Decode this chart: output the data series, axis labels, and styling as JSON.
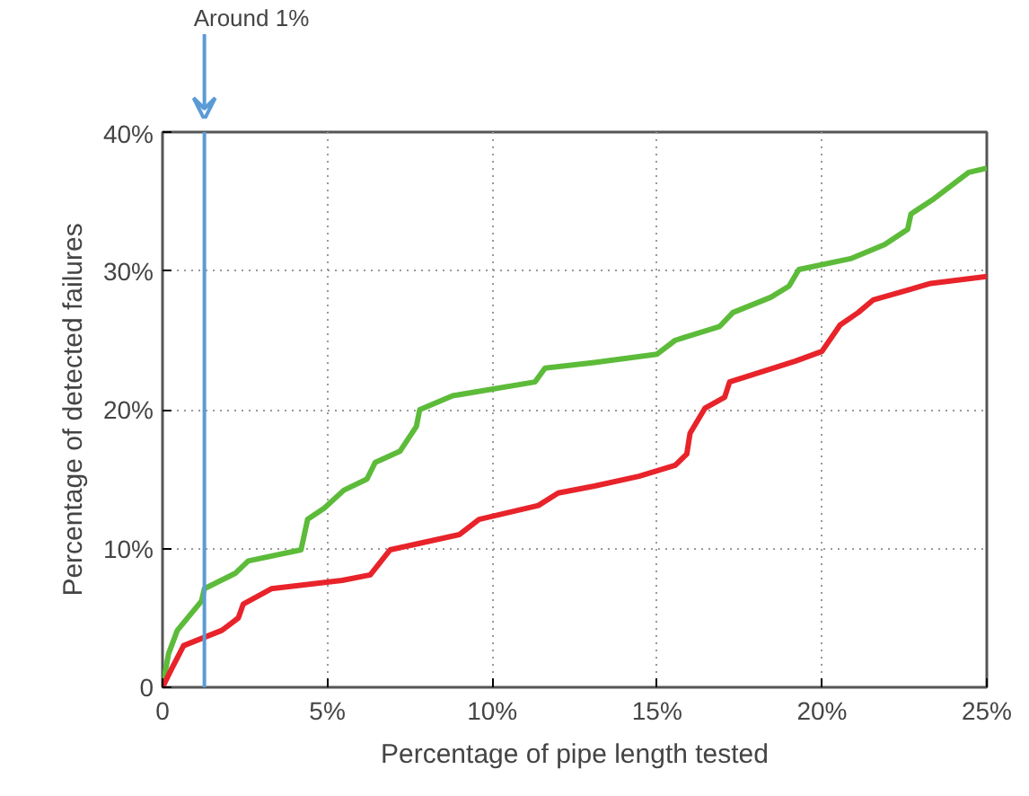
{
  "chart_data": {
    "type": "line",
    "xlabel": "Percentage of pipe length tested",
    "ylabel": "Percentage of detected failures",
    "xlim": [
      0,
      25
    ],
    "ylim": [
      0,
      40
    ],
    "xticks": [
      {
        "value": 0,
        "label": "0"
      },
      {
        "value": 5,
        "label": "5%"
      },
      {
        "value": 10,
        "label": "10%"
      },
      {
        "value": 15,
        "label": "15%"
      },
      {
        "value": 20,
        "label": "20%"
      },
      {
        "value": 25,
        "label": "25%"
      }
    ],
    "yticks": [
      {
        "value": 0,
        "label": "0"
      },
      {
        "value": 10,
        "label": "10%"
      },
      {
        "value": 20,
        "label": "20%"
      },
      {
        "value": 30,
        "label": "30%"
      },
      {
        "value": 40,
        "label": "40%"
      }
    ],
    "grid": true,
    "line_style": "solid",
    "marker": "none",
    "ref_lines": [
      {
        "axis": "x",
        "value": 1.27,
        "label": "Around 1%",
        "color": "#5b9bd5"
      }
    ],
    "series": [
      {
        "color": "#5dbb3a",
        "x": [
          0,
          0.18,
          0.45,
          1.18,
          1.27,
          2.2,
          2.6,
          4.2,
          4.4,
          4.9,
          5.5,
          6.2,
          6.45,
          7.2,
          7.7,
          7.8,
          8.8,
          11.3,
          11.6,
          13.1,
          15.0,
          15.55,
          16.9,
          17.3,
          18.45,
          19.0,
          19.3,
          20.9,
          21.9,
          22.6,
          22.7,
          23.4,
          24.45,
          25
        ],
        "values": [
          0,
          2.4,
          4.1,
          6.2,
          7.1,
          8.2,
          9.1,
          9.9,
          12.1,
          12.9,
          14.2,
          15.0,
          16.2,
          17.0,
          18.8,
          20.0,
          21.0,
          22.0,
          23.0,
          23.4,
          24.0,
          25.0,
          26.0,
          27.0,
          28.1,
          28.9,
          30.1,
          30.9,
          31.9,
          33.0,
          34.1,
          35.2,
          37.1,
          37.4
        ]
      },
      {
        "color": "#e8232a",
        "x": [
          0,
          0.27,
          0.64,
          1.27,
          1.8,
          2.3,
          2.45,
          3.3,
          5.45,
          6.3,
          6.9,
          9.0,
          9.6,
          11.4,
          12.0,
          13.1,
          14.45,
          15.55,
          15.9,
          16.0,
          16.45,
          17.05,
          17.2,
          19.2,
          20.0,
          20.55,
          21.1,
          21.55,
          23.3,
          25
        ],
        "values": [
          0,
          1.3,
          3.0,
          3.6,
          4.1,
          5.0,
          6.0,
          7.1,
          7.7,
          8.1,
          9.9,
          11.0,
          12.1,
          13.1,
          14.0,
          14.5,
          15.2,
          16.0,
          16.8,
          18.3,
          20.1,
          20.9,
          22.0,
          23.5,
          24.2,
          26.1,
          27.0,
          27.9,
          29.1,
          29.6
        ]
      }
    ]
  }
}
